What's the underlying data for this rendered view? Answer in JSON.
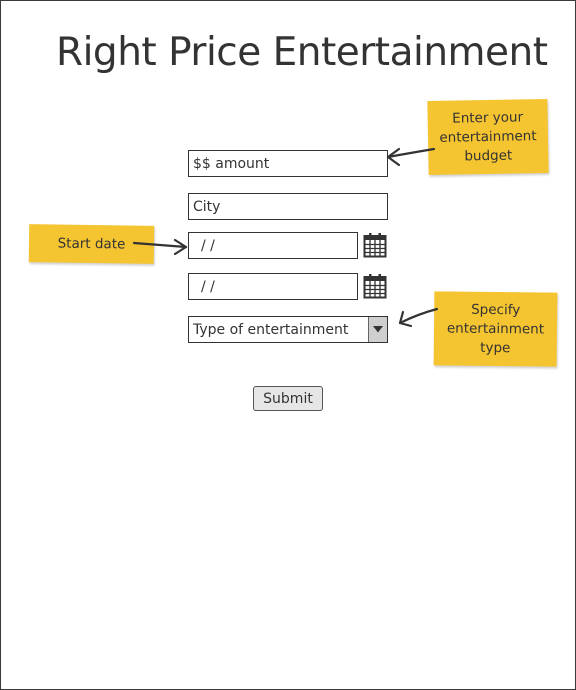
{
  "page": {
    "title": "Right Price Entertainment"
  },
  "form": {
    "amount_placeholder": "$$ amount",
    "city_placeholder": "City",
    "start_date_placeholder": "/ /",
    "end_date_placeholder": "/ /",
    "type_select_value": "Type of entertainment",
    "submit_label": "Submit"
  },
  "notes": {
    "budget": "Enter your entertainment budget",
    "start_date": "Start date",
    "type": "Specify entertainment type"
  },
  "icons": {
    "start_calendar": "calendar-icon",
    "end_calendar": "calendar-icon",
    "select_arrow": "triangle-down-icon"
  },
  "colors": {
    "sticky_note": "#f5c431",
    "text": "#333333",
    "button": "#e6e6e6"
  }
}
